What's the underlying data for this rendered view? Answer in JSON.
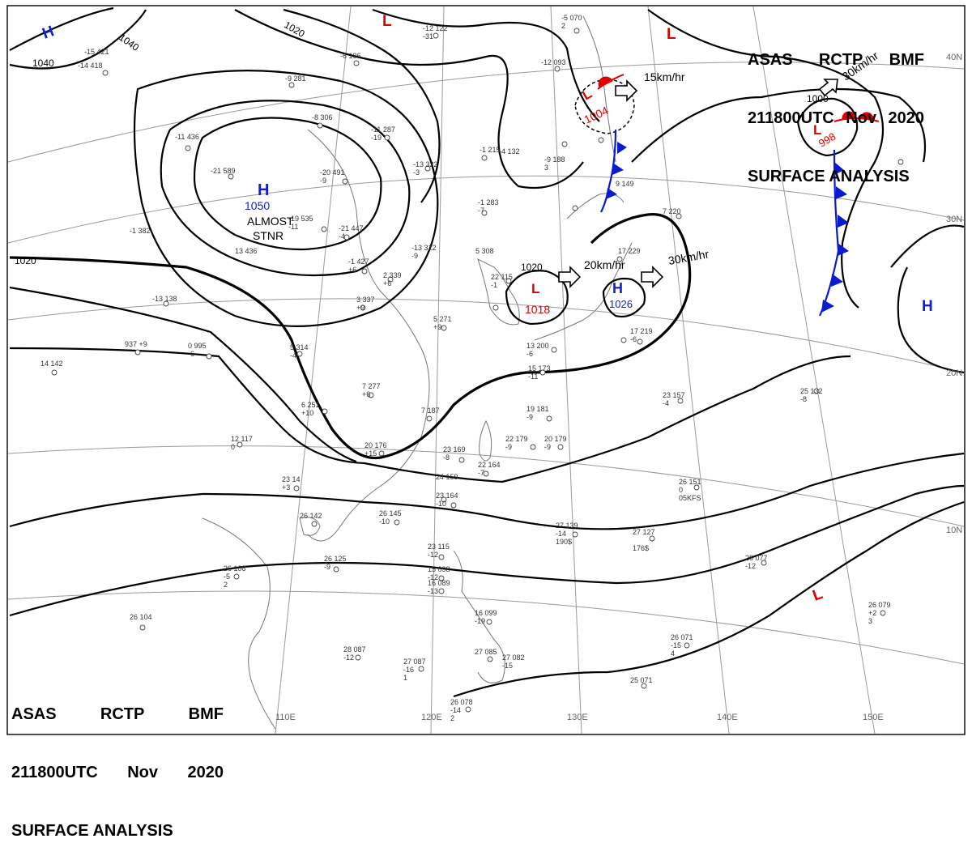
{
  "header": {
    "line1": [
      "ASAS",
      "RCTP",
      "BMF"
    ],
    "line2": [
      "211800UTC",
      "Nov",
      "2020"
    ],
    "line3": "SURFACE ANALYSIS"
  },
  "lat_labels": [
    "40N",
    "30N",
    "20N",
    "10N"
  ],
  "lon_labels": [
    "110E",
    "120E",
    "130E",
    "140E",
    "150E"
  ],
  "isobar_labels": [
    "1040",
    "1040",
    "1020",
    "1020",
    "1020",
    "1000"
  ],
  "pressure_systems": [
    {
      "kind": "H",
      "value": "1050",
      "note1": "ALMOST",
      "note2": "STNR"
    },
    {
      "kind": "L",
      "value": "1018",
      "motion": "20km/hr"
    },
    {
      "kind": "H",
      "value": "1026",
      "motion": "30km/hr"
    },
    {
      "kind": "L",
      "value": "1004",
      "motion": "15km/hr"
    },
    {
      "kind": "L",
      "value": "998",
      "motion": "30km/hr",
      "isobar": "1000"
    },
    {
      "kind": "H",
      "value": ""
    },
    {
      "kind": "H",
      "value": ""
    },
    {
      "kind": "L",
      "value": ""
    },
    {
      "kind": "L",
      "value": ""
    },
    {
      "kind": "L",
      "value": ""
    }
  ],
  "stations": [
    [
      "-15",
      "421",
      "",
      ""
    ],
    [
      "-14",
      "418",
      "",
      ""
    ],
    [
      "-6",
      "196",
      "",
      ""
    ],
    [
      "-12",
      "122",
      "-31",
      ""
    ],
    [
      "-9",
      "281",
      "",
      ""
    ],
    [
      "-8",
      "306",
      "",
      ""
    ],
    [
      "-11",
      "287",
      "-19",
      ""
    ],
    [
      "-11",
      "436",
      "",
      ""
    ],
    [
      "-21",
      "589",
      "",
      ""
    ],
    [
      "-20",
      "491",
      "-9",
      ""
    ],
    [
      "-19",
      "535",
      "-11",
      ""
    ],
    [
      "-21",
      "447",
      "-4",
      ""
    ],
    [
      "-13",
      "312",
      "-9",
      ""
    ],
    [
      "5",
      "308",
      "",
      ""
    ],
    [
      "-1",
      "283",
      "-7",
      ""
    ],
    [
      "-13",
      "322",
      "-3",
      ""
    ],
    [
      "-1",
      "215",
      "",
      ""
    ],
    [
      "-9",
      "188",
      "3",
      ""
    ],
    [
      "-1",
      "382",
      "",
      ""
    ],
    [
      "13",
      "436",
      "",
      ""
    ],
    [
      "-1",
      "427",
      "+6",
      ""
    ],
    [
      "2",
      "339",
      "+6",
      ""
    ],
    [
      "3",
      "337",
      "+9",
      ""
    ],
    [
      "5",
      "271",
      "+9",
      ""
    ],
    [
      "-13",
      "138",
      "",
      ""
    ],
    [
      "0",
      "995",
      "-6",
      ""
    ],
    [
      "937",
      "+9",
      "",
      ""
    ],
    [
      "14",
      "142",
      "",
      ""
    ],
    [
      "5",
      "314",
      "-4",
      ""
    ],
    [
      "7",
      "277",
      "+6",
      ""
    ],
    [
      "6",
      "251",
      "+10",
      ""
    ],
    [
      "7",
      "187",
      "",
      ""
    ],
    [
      "12",
      "117",
      "0",
      ""
    ],
    [
      "20",
      "176",
      "+15",
      ""
    ],
    [
      "23",
      "169",
      "-8",
      ""
    ],
    [
      "24",
      "159",
      "",
      ""
    ],
    [
      "22",
      "164",
      "-7",
      ""
    ],
    [
      "23",
      "164",
      "-10",
      ""
    ],
    [
      "19",
      "181",
      "-9",
      ""
    ],
    [
      "22",
      "179",
      "-9",
      ""
    ],
    [
      "20",
      "179",
      "-9",
      ""
    ],
    [
      "23",
      "14",
      "+3",
      ""
    ],
    [
      "26",
      "142",
      "",
      ""
    ],
    [
      "26",
      "145",
      "-10",
      ""
    ],
    [
      "26",
      "125",
      "-9",
      ""
    ],
    [
      "26",
      "108",
      "-5",
      "2"
    ],
    [
      "26",
      "104",
      "",
      ""
    ],
    [
      "27",
      "139",
      "-14",
      "190$"
    ],
    [
      "27",
      "127",
      "",
      "176$"
    ],
    [
      "23",
      "115",
      "-12",
      ""
    ],
    [
      "15",
      "098",
      "-12",
      ""
    ],
    [
      "16",
      "089",
      "-13",
      ""
    ],
    [
      "16",
      "099",
      "-19",
      ""
    ],
    [
      "28",
      "087",
      "-12",
      ""
    ],
    [
      "27",
      "087",
      "-16",
      "1"
    ],
    [
      "27",
      "085",
      "",
      ""
    ],
    [
      "27",
      "082",
      "-15",
      ""
    ],
    [
      "26",
      "078",
      "-14",
      "2"
    ],
    [
      "25",
      "071",
      "",
      ""
    ],
    [
      "26",
      "071",
      "-15",
      "4"
    ],
    [
      "26",
      "077",
      "-12",
      ""
    ],
    [
      "26",
      "079",
      "+2",
      "3"
    ],
    [
      "26",
      "151",
      "0",
      "05KFS"
    ],
    [
      "23",
      "157",
      "-4",
      ""
    ],
    [
      "25",
      "132",
      "-8",
      ""
    ],
    [
      "17",
      "219",
      "-6",
      ""
    ],
    [
      "17",
      "229",
      "",
      ""
    ],
    [
      "7",
      "220",
      "",
      ""
    ],
    [
      "13",
      "200",
      "-6",
      ""
    ],
    [
      "15",
      "173",
      "-11",
      ""
    ],
    [
      "22",
      "115",
      "-1",
      ""
    ],
    [
      "9",
      "149",
      "",
      ""
    ],
    [
      "-12",
      "093",
      "",
      ""
    ],
    [
      "-5",
      "070",
      "2",
      ""
    ],
    [
      "-4",
      "132",
      "",
      ""
    ]
  ]
}
